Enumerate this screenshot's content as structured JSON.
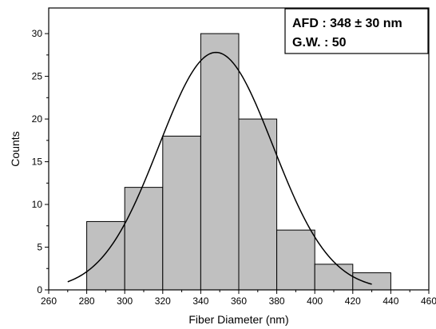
{
  "chart_data": {
    "type": "bar",
    "subtype": "histogram",
    "bins": [
      {
        "start": 280,
        "end": 300,
        "count": 8
      },
      {
        "start": 300,
        "end": 320,
        "count": 12
      },
      {
        "start": 320,
        "end": 340,
        "count": 18
      },
      {
        "start": 340,
        "end": 360,
        "count": 30
      },
      {
        "start": 360,
        "end": 380,
        "count": 20
      },
      {
        "start": 380,
        "end": 400,
        "count": 7
      },
      {
        "start": 400,
        "end": 420,
        "count": 3
      },
      {
        "start": 420,
        "end": 440,
        "count": 2
      }
    ],
    "fit_curve": {
      "type": "gaussian",
      "mean": 348,
      "sd": 30,
      "peak": 27.8,
      "x_range": [
        270,
        430
      ]
    },
    "xlabel": "Fiber Diameter (nm)",
    "ylabel": "Counts",
    "xlim": [
      260,
      460
    ],
    "ylim": [
      0,
      33
    ],
    "xticks": [
      260,
      280,
      300,
      320,
      340,
      360,
      380,
      400,
      420,
      440,
      460
    ],
    "yticks": [
      0,
      5,
      10,
      15,
      20,
      25,
      30
    ],
    "xtick_labels": [
      "260",
      "280",
      "300",
      "320",
      "340",
      "360",
      "380",
      "400",
      "420",
      "440",
      "460"
    ],
    "ytick_labels": [
      "0",
      "5",
      "10",
      "15",
      "20",
      "25",
      "30"
    ],
    "annotation": {
      "line1": "AFD :  348 ± 30 nm",
      "line2": "G.W. : 50",
      "position": "top-right"
    },
    "bar_fill": "#c0c0c0",
    "grid": false
  }
}
